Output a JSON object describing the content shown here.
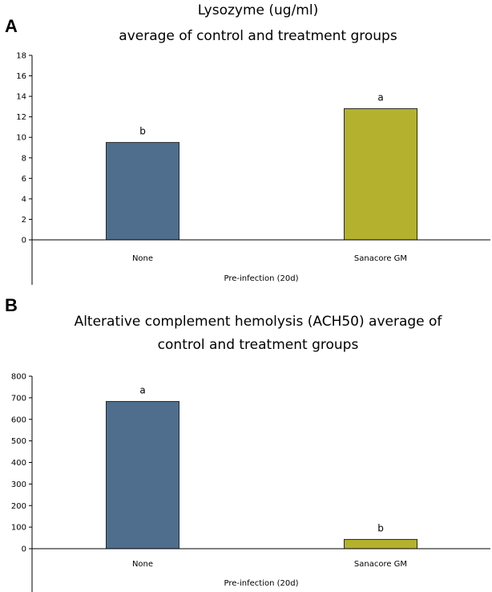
{
  "chart_data": [
    {
      "panel": "A",
      "type": "bar",
      "title": [
        "Lysozyme (ug/ml)",
        "average of control and treatment groups"
      ],
      "categories": [
        "None",
        "Sanacore GM"
      ],
      "values": [
        9.5,
        12.8
      ],
      "labels": [
        "b",
        "a"
      ],
      "colors": [
        "#4f6e8d",
        "#b3b12e"
      ],
      "xlabel": "Pre-infection (20d)",
      "ylabel": "",
      "ylim": [
        0,
        18
      ],
      "yticks": [
        0,
        2,
        4,
        6,
        8,
        10,
        12,
        14,
        16,
        18
      ],
      "grid": false
    },
    {
      "panel": "B",
      "type": "bar",
      "title": [
        "Alterative complement hemolysis (ACH50) average of",
        "control and treatment groups"
      ],
      "categories": [
        "None",
        "Sanacore GM"
      ],
      "values": [
        683,
        43
      ],
      "labels": [
        "a",
        "b"
      ],
      "colors": [
        "#4f6e8d",
        "#b3b12e"
      ],
      "xlabel": "Pre-infection (20d)",
      "ylabel": "",
      "ylim": [
        0,
        800
      ],
      "yticks": [
        0,
        100,
        200,
        300,
        400,
        500,
        600,
        700,
        800
      ],
      "grid": false
    }
  ]
}
